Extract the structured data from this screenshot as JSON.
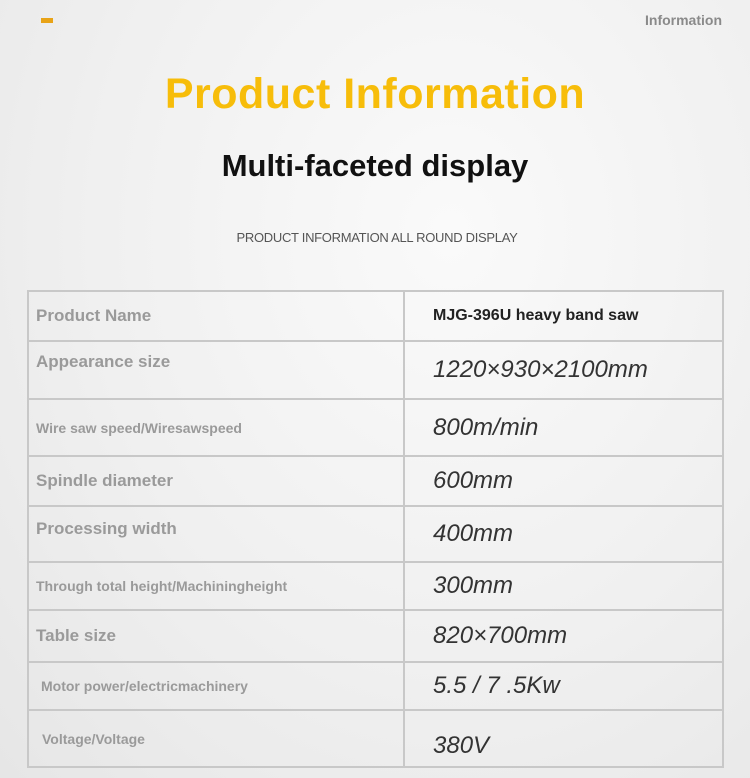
{
  "header": {
    "corner_label": "Information",
    "accent_color": "#e8a317"
  },
  "title": "Product Information",
  "subtitle": "Multi-faceted display",
  "caption": "PRODUCT INFORMATION ALL ROUND DISPLAY",
  "specs": [
    {
      "label": "Product Name",
      "value": "MJG-396U heavy band saw"
    },
    {
      "label": "Appearance size",
      "value": "1220×930×2100mm"
    },
    {
      "label": "Wire saw speed/Wiresawspeed",
      "value": "800m/min"
    },
    {
      "label": "Spindle diameter",
      "value": "600mm"
    },
    {
      "label": "Processing width",
      "value": "400mm"
    },
    {
      "label": "Through total height/Machiningheight",
      "value": "300mm"
    },
    {
      "label": "Table size",
      "value": "820×700mm"
    },
    {
      "label": "Motor power/electricmachinery",
      "value": "5.5 / 7 .5Kw"
    },
    {
      "label": "Voltage/Voltage",
      "value": "380V"
    }
  ]
}
